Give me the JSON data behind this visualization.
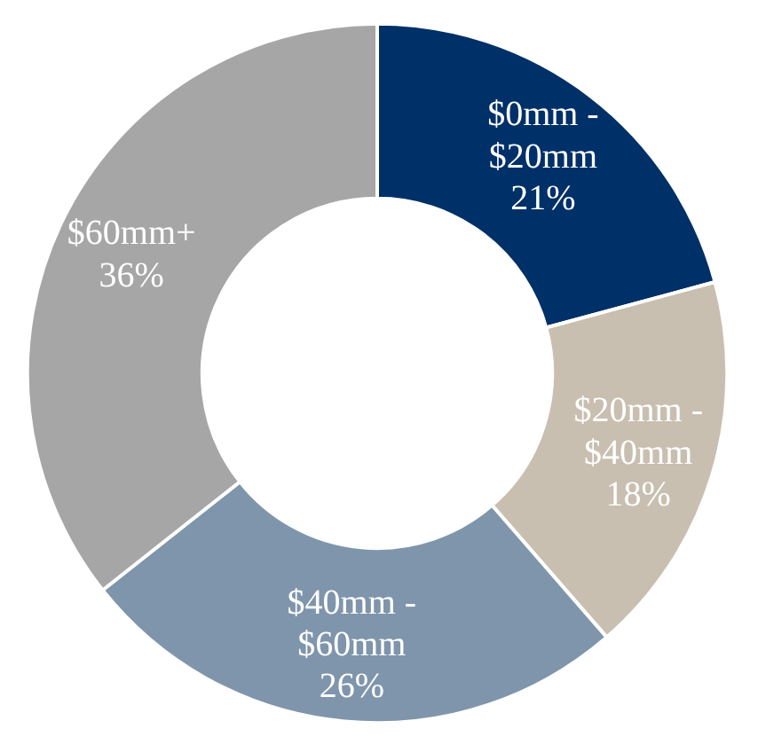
{
  "chart_data": {
    "type": "donut",
    "categories": [
      "$0mm - $20mm",
      "$20mm - $40mm",
      "$40mm - $60mm",
      "$60mm+"
    ],
    "values": [
      21,
      18,
      26,
      36
    ],
    "value_labels": [
      "21%",
      "18%",
      "26%",
      "36%"
    ],
    "colors": [
      "#003068",
      "#c9bfb0",
      "#7f95ab",
      "#a6a6a6"
    ]
  }
}
